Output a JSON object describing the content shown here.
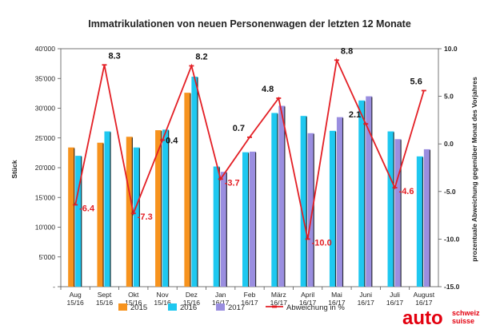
{
  "chart_data": {
    "type": "bar",
    "title": "Immatrikulationen von neuen Personenwagen der letzten 12 Monate",
    "ylabel": "Stück",
    "y2label": "prozentuale Abweichung gegenüber Monat des Vorjahres",
    "ylim": [
      0,
      40000
    ],
    "y2lim": [
      -15,
      10
    ],
    "yticks": [
      "40'000",
      "35'000",
      "30'000",
      "25'000",
      "20'000",
      "15'000",
      "10'000",
      "5'000",
      "-"
    ],
    "y2ticks": [
      "10.0",
      "5.0",
      "0.0",
      "-5.0",
      "-10.0",
      "-15.0"
    ],
    "categories": [
      {
        "month": "Aug",
        "year": "15/16"
      },
      {
        "month": "Sept",
        "year": "15/16"
      },
      {
        "month": "Okt",
        "year": "15/16"
      },
      {
        "month": "Nov",
        "year": "15/16"
      },
      {
        "month": "Dez",
        "year": "15/16"
      },
      {
        "month": "Jan",
        "year": "16/17"
      },
      {
        "month": "Feb",
        "year": "16/17"
      },
      {
        "month": "März",
        "year": "16/17"
      },
      {
        "month": "April",
        "year": "16/17"
      },
      {
        "month": "Mai",
        "year": "16/17"
      },
      {
        "month": "Juni",
        "year": "16/17"
      },
      {
        "month": "Juli",
        "year": "16/17"
      },
      {
        "month": "August",
        "year": "16/17"
      }
    ],
    "series": [
      {
        "name": "2015",
        "color": "#f7931e",
        "values": [
          23400,
          24200,
          25200,
          26300,
          32600,
          null,
          null,
          null,
          null,
          null,
          null,
          null,
          null
        ]
      },
      {
        "name": "2016",
        "color": "#1ec8f0",
        "values": [
          22000,
          26100,
          23400,
          26400,
          35300,
          20200,
          22600,
          29200,
          28700,
          26200,
          31300,
          26100,
          21900
        ]
      },
      {
        "name": "2017",
        "color": "#9a8ee0",
        "values": [
          null,
          null,
          null,
          null,
          null,
          19300,
          22700,
          30400,
          25800,
          28500,
          32000,
          24800,
          23100
        ]
      }
    ],
    "line": {
      "name": "Abweichung in %",
      "color": "#e31e24",
      "values": [
        -6.4,
        8.3,
        -7.3,
        0.4,
        8.2,
        -3.7,
        0.7,
        4.8,
        -10.0,
        8.8,
        2.1,
        -4.6,
        5.6
      ],
      "labels": [
        "-6.4",
        "8.3",
        "-7.3",
        "0.4",
        "8.2",
        "-3.7",
        "0.7",
        "4.8",
        "-10.0",
        "8.8",
        "2.1",
        "-4.6",
        "5.6"
      ],
      "label_colors": [
        "#e31e24",
        "#111111",
        "#e31e24",
        "#111111",
        "#111111",
        "#e31e24",
        "#111111",
        "#111111",
        "#e31e24",
        "#111111",
        "#111111",
        "#e31e24",
        "#111111"
      ]
    },
    "grid": false,
    "legend_position": "bottom"
  },
  "brand": {
    "auto": "auto",
    "line1": "schweiz",
    "line2": "suisse",
    "color": "#e3000f"
  }
}
